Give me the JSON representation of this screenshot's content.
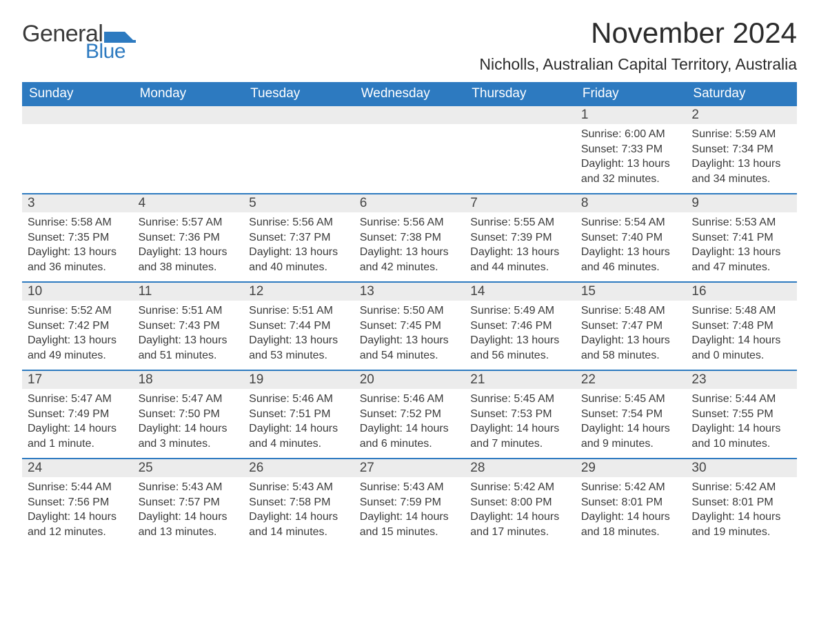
{
  "logo": {
    "word1": "General",
    "word2": "Blue",
    "flag_color": "#2d7ac0"
  },
  "month_title": "November 2024",
  "location": "Nicholls, Australian Capital Territory, Australia",
  "days_of_week": [
    "Sunday",
    "Monday",
    "Tuesday",
    "Wednesday",
    "Thursday",
    "Friday",
    "Saturday"
  ],
  "colors": {
    "header_bg": "#2d7ac0",
    "header_text": "#ffffff",
    "daynum_bg": "#ececec",
    "row_border": "#2d7ac0",
    "text": "#2a2a2a",
    "background": "#ffffff"
  },
  "first_weekday_index": 5,
  "days": [
    {
      "n": 1,
      "sunrise": "6:00 AM",
      "sunset": "7:33 PM",
      "daylight": "13 hours and 32 minutes."
    },
    {
      "n": 2,
      "sunrise": "5:59 AM",
      "sunset": "7:34 PM",
      "daylight": "13 hours and 34 minutes."
    },
    {
      "n": 3,
      "sunrise": "5:58 AM",
      "sunset": "7:35 PM",
      "daylight": "13 hours and 36 minutes."
    },
    {
      "n": 4,
      "sunrise": "5:57 AM",
      "sunset": "7:36 PM",
      "daylight": "13 hours and 38 minutes."
    },
    {
      "n": 5,
      "sunrise": "5:56 AM",
      "sunset": "7:37 PM",
      "daylight": "13 hours and 40 minutes."
    },
    {
      "n": 6,
      "sunrise": "5:56 AM",
      "sunset": "7:38 PM",
      "daylight": "13 hours and 42 minutes."
    },
    {
      "n": 7,
      "sunrise": "5:55 AM",
      "sunset": "7:39 PM",
      "daylight": "13 hours and 44 minutes."
    },
    {
      "n": 8,
      "sunrise": "5:54 AM",
      "sunset": "7:40 PM",
      "daylight": "13 hours and 46 minutes."
    },
    {
      "n": 9,
      "sunrise": "5:53 AM",
      "sunset": "7:41 PM",
      "daylight": "13 hours and 47 minutes."
    },
    {
      "n": 10,
      "sunrise": "5:52 AM",
      "sunset": "7:42 PM",
      "daylight": "13 hours and 49 minutes."
    },
    {
      "n": 11,
      "sunrise": "5:51 AM",
      "sunset": "7:43 PM",
      "daylight": "13 hours and 51 minutes."
    },
    {
      "n": 12,
      "sunrise": "5:51 AM",
      "sunset": "7:44 PM",
      "daylight": "13 hours and 53 minutes."
    },
    {
      "n": 13,
      "sunrise": "5:50 AM",
      "sunset": "7:45 PM",
      "daylight": "13 hours and 54 minutes."
    },
    {
      "n": 14,
      "sunrise": "5:49 AM",
      "sunset": "7:46 PM",
      "daylight": "13 hours and 56 minutes."
    },
    {
      "n": 15,
      "sunrise": "5:48 AM",
      "sunset": "7:47 PM",
      "daylight": "13 hours and 58 minutes."
    },
    {
      "n": 16,
      "sunrise": "5:48 AM",
      "sunset": "7:48 PM",
      "daylight": "14 hours and 0 minutes."
    },
    {
      "n": 17,
      "sunrise": "5:47 AM",
      "sunset": "7:49 PM",
      "daylight": "14 hours and 1 minute."
    },
    {
      "n": 18,
      "sunrise": "5:47 AM",
      "sunset": "7:50 PM",
      "daylight": "14 hours and 3 minutes."
    },
    {
      "n": 19,
      "sunrise": "5:46 AM",
      "sunset": "7:51 PM",
      "daylight": "14 hours and 4 minutes."
    },
    {
      "n": 20,
      "sunrise": "5:46 AM",
      "sunset": "7:52 PM",
      "daylight": "14 hours and 6 minutes."
    },
    {
      "n": 21,
      "sunrise": "5:45 AM",
      "sunset": "7:53 PM",
      "daylight": "14 hours and 7 minutes."
    },
    {
      "n": 22,
      "sunrise": "5:45 AM",
      "sunset": "7:54 PM",
      "daylight": "14 hours and 9 minutes."
    },
    {
      "n": 23,
      "sunrise": "5:44 AM",
      "sunset": "7:55 PM",
      "daylight": "14 hours and 10 minutes."
    },
    {
      "n": 24,
      "sunrise": "5:44 AM",
      "sunset": "7:56 PM",
      "daylight": "14 hours and 12 minutes."
    },
    {
      "n": 25,
      "sunrise": "5:43 AM",
      "sunset": "7:57 PM",
      "daylight": "14 hours and 13 minutes."
    },
    {
      "n": 26,
      "sunrise": "5:43 AM",
      "sunset": "7:58 PM",
      "daylight": "14 hours and 14 minutes."
    },
    {
      "n": 27,
      "sunrise": "5:43 AM",
      "sunset": "7:59 PM",
      "daylight": "14 hours and 15 minutes."
    },
    {
      "n": 28,
      "sunrise": "5:42 AM",
      "sunset": "8:00 PM",
      "daylight": "14 hours and 17 minutes."
    },
    {
      "n": 29,
      "sunrise": "5:42 AM",
      "sunset": "8:01 PM",
      "daylight": "14 hours and 18 minutes."
    },
    {
      "n": 30,
      "sunrise": "5:42 AM",
      "sunset": "8:01 PM",
      "daylight": "14 hours and 19 minutes."
    }
  ],
  "labels": {
    "sunrise": "Sunrise:",
    "sunset": "Sunset:",
    "daylight": "Daylight:"
  }
}
